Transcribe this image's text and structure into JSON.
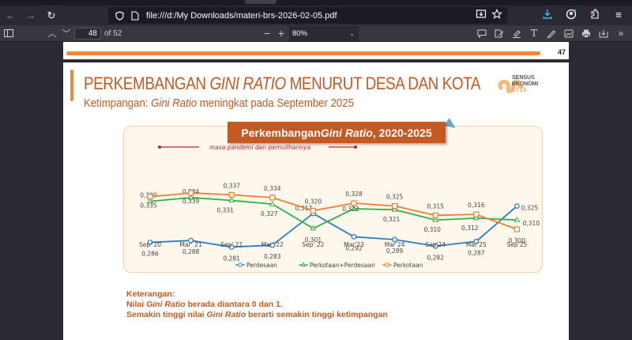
{
  "browser": {
    "url": "file:///d:/My Downloads/materi-brs-2026-02-05.pdf",
    "icons": {
      "back": "arrow-left-icon",
      "forward": "arrow-right-icon",
      "reload": "reload-icon",
      "shield": "shield-icon",
      "page": "page-icon",
      "reader": "reader-view-icon",
      "bookmark": "star-icon",
      "downloads": "download-icon",
      "account": "account-icon",
      "extensions": "extensions-icon",
      "menu": "hamburger-menu-icon"
    }
  },
  "pdf_toolbar": {
    "current_page": "48",
    "page_of": "of 52",
    "zoom_level": "80%",
    "zoom_out": "−",
    "zoom_in": "+"
  },
  "prev_page": {
    "page_number": "47"
  },
  "slide": {
    "title_part1": "PERKEMBANGAN ",
    "title_italic": "GINI RATIO",
    "title_part2": " MENURUT DESA DAN KOTA",
    "subtitle_part1": "Ketimpangan: ",
    "subtitle_italic": "Gini Ratio",
    "subtitle_part2": " meningkat pada September 2025",
    "logo": {
      "line1": "SENSUS",
      "line2": "EKONOMI",
      "line3": "2026"
    },
    "chart_title_part1": "Perkembangan ",
    "chart_title_italic": "Gini Ratio",
    "chart_title_part2": ", 2020-2025",
    "pandemic_note": "masa pandemi dan pemulihannya",
    "notes": {
      "heading": "Keterangan:",
      "line1_a": "Nilai ",
      "line1_i": "Gini Ratio",
      "line1_b": " berada diantara 0 dan 1.",
      "line2_a": "Semakin tinggi nilai ",
      "line2_i": "Gini Ratio",
      "line2_b": " berarti semakin tinggi ketimpangan"
    }
  },
  "colors": {
    "accent": "#c45a22",
    "orange_bar": "#f0863a",
    "perdesaan": "#2f7dc6",
    "total": "#2db34a",
    "perkotaan": "#f07d30",
    "pandemic": "#d0202a"
  },
  "chart_data": {
    "type": "line",
    "title": "Perkembangan Gini Ratio, 2020-2025",
    "categories": [
      "Sep' 20",
      "Mar' 21",
      "Sep' 21",
      "Mar' 22",
      "Sep' 22",
      "Mar'23",
      "Mar'24",
      "Sep'24",
      "Mar'25",
      "Sep'25"
    ],
    "series": [
      {
        "name": "Perdesaan",
        "values": [
          0.286,
          0.288,
          0.281,
          0.283,
          0.317,
          0.292,
          0.289,
          0.282,
          0.287,
          0.325
        ],
        "labels": [
          "0,286",
          "0,288",
          "0,281",
          "0,283",
          "0,317",
          "0,292",
          "0,289",
          "0,282",
          "0,287",
          "0,325"
        ]
      },
      {
        "name": "Perkotaan+Perdesaan",
        "values": [
          0.33,
          0.334,
          0.331,
          0.327,
          0.301,
          0.322,
          0.321,
          0.31,
          0.312,
          0.31
        ],
        "labels": [
          "0,330",
          "0,334",
          "0,331",
          "0,327",
          "0,301",
          "0,322",
          "0,321",
          "0,310",
          "0,312",
          "0,310"
        ]
      },
      {
        "name": "Perkotaan",
        "values": [
          0.335,
          0.339,
          0.337,
          0.334,
          0.32,
          0.328,
          0.325,
          0.315,
          0.316,
          0.3
        ],
        "labels": [
          "0,335",
          "0,339",
          "0,337",
          "0,334",
          "0,320",
          "0,328",
          "0,325",
          "0,315",
          "0,316",
          "0,300"
        ]
      }
    ],
    "annotation": "masa pandemi dan pemulihannya",
    "legend_position": "bottom",
    "grid": false
  }
}
